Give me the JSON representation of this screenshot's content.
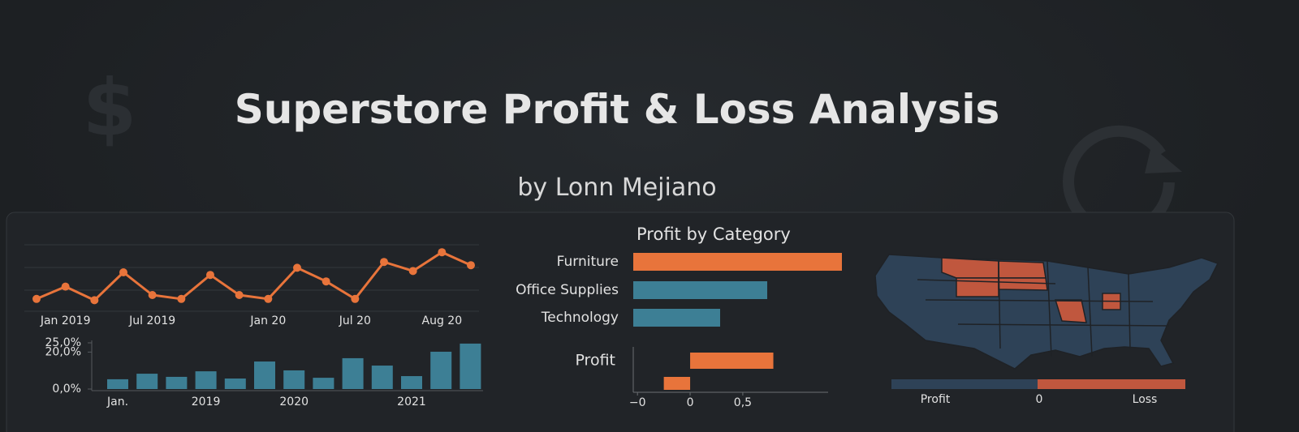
{
  "header": {
    "title": "Superstore Profit & Loss Analysis",
    "subtitle": "by Lonn Mejiano",
    "decor_symbol": "$"
  },
  "chart_data": [
    {
      "type": "line",
      "color": "#e8743b",
      "categories": [
        null,
        "Jan 2019",
        null,
        null,
        "Jul 2019",
        null,
        null,
        null,
        "Jan 20",
        null,
        null,
        "Jul 20",
        null,
        null,
        "Aug 20",
        null
      ],
      "values": [
        14,
        33,
        12,
        55,
        20,
        14,
        51,
        20,
        14,
        62,
        41,
        14,
        71,
        57,
        86,
        66
      ],
      "ylim": [
        0,
        100
      ]
    },
    {
      "type": "bar",
      "color": "#3d7f95",
      "categories": [
        "Jan.",
        null,
        null,
        "2019",
        null,
        null,
        "2020",
        null,
        null,
        null,
        "2021",
        null,
        null
      ],
      "values": [
        5.3,
        8.3,
        6.6,
        9.6,
        5.7,
        14.9,
        10.1,
        6.1,
        16.7,
        12.7,
        7.0,
        20.2,
        24.6
      ],
      "ylim": [
        0,
        25
      ],
      "yticks": [
        {
          "value": 0,
          "label": "0,0%"
        },
        {
          "value": 20,
          "label": "20,0%"
        },
        {
          "value": 25,
          "label": "25,0%"
        }
      ]
    },
    {
      "type": "hbar",
      "title": "Profit by Category",
      "categories": [
        "Furniture",
        "Office Supplies",
        "Technology"
      ],
      "values": [
        257,
        165,
        107
      ],
      "colors": [
        "#e8743b",
        "#3d7f95",
        "#3d7f95"
      ],
      "xlim": [
        0,
        280
      ]
    },
    {
      "type": "hbar-axis",
      "categories": [
        "Profit",
        null
      ],
      "values": [
        0.79,
        -0.25
      ],
      "color": "#e8743b",
      "xlim": [
        -0.54,
        1.31
      ],
      "xticks": [
        {
          "value": -0.5,
          "label": "−0"
        },
        0,
        {
          "value": 0.5,
          "label": "0,5"
        }
      ]
    },
    {
      "type": "map",
      "profit_color": "#2e4257",
      "loss_color": "#c0573e",
      "legend": {
        "low": "Profit",
        "mid": 0,
        "high": "Loss"
      }
    }
  ]
}
